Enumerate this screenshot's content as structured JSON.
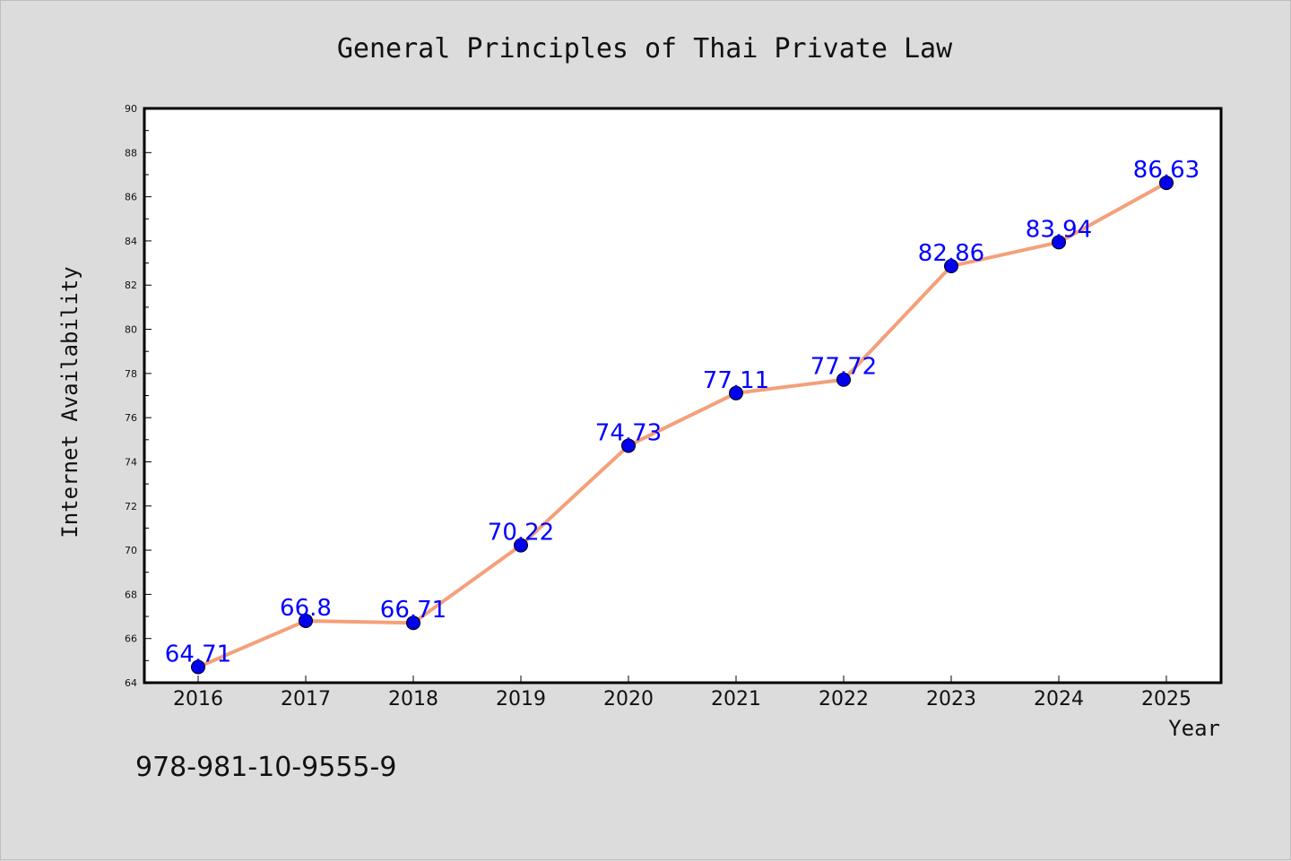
{
  "chart_data": {
    "type": "line",
    "title": "General Principles of Thai Private Law",
    "xlabel": "Year",
    "ylabel": "Internet Availability",
    "categories": [
      "2016",
      "2017",
      "2018",
      "2019",
      "2020",
      "2021",
      "2022",
      "2023",
      "2024",
      "2025"
    ],
    "series": [
      {
        "values": [
          64.71,
          66.8,
          66.71,
          70.22,
          74.73,
          77.11,
          77.72,
          82.86,
          83.94,
          86.63
        ],
        "labels": [
          "64.71",
          "66.8",
          "66.71",
          "70.22",
          "74.73",
          "77.11",
          "77.72",
          "82.86",
          "83.94",
          "86.63"
        ],
        "line_color": "#f4a07a",
        "marker_color": "#0000ee",
        "label_color": "#0000ff"
      }
    ],
    "ylim": [
      64,
      90
    ],
    "yticks": [
      "64",
      "66",
      "68",
      "70",
      "72",
      "74",
      "76",
      "78",
      "80",
      "82",
      "84",
      "86",
      "88",
      "90"
    ],
    "grid": false,
    "legend": "none"
  },
  "footnote": "978-981-10-9555-9",
  "colors": {
    "background": "#dcdcdc",
    "plot_background": "#ffffff",
    "axis": "#000000"
  }
}
